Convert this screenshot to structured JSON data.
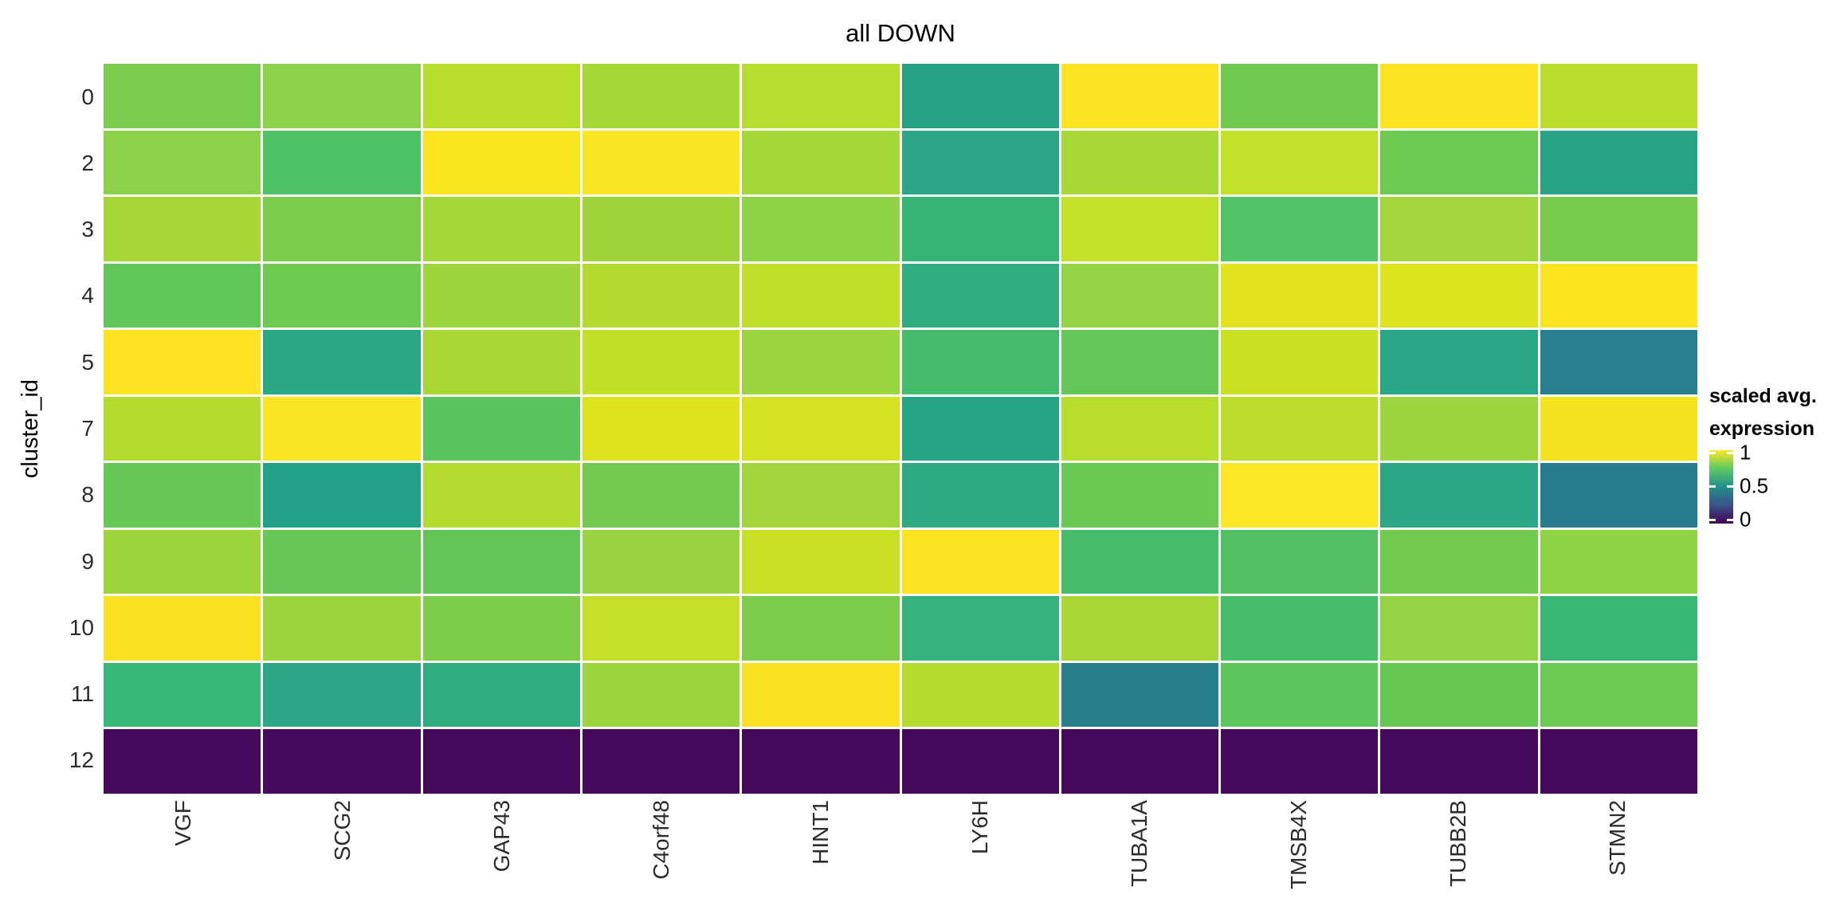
{
  "figure": {
    "title": "all DOWN",
    "y_axis_title": "cluster_id",
    "background": "#ffffff"
  },
  "legend": {
    "title_line1": "scaled avg.",
    "title_line2": "expression",
    "tick_labels": [
      "1",
      "0.5",
      "0"
    ],
    "gradient_stops": [
      "#FDE725",
      "#5EC962",
      "#21918C",
      "#3B528B",
      "#440154"
    ]
  },
  "chart_data": {
    "type": "heatmap",
    "title": "all DOWN",
    "xlabel": "",
    "ylabel": "cluster_id",
    "legend_title": "scaled avg. expression",
    "colorscale": "viridis",
    "value_range": [
      0,
      1
    ],
    "x_categories": [
      "VGF",
      "SCG2",
      "GAP43",
      "C4orf48",
      "HINT1",
      "LY6H",
      "TUBA1A",
      "TMSB4X",
      "TUBB2B",
      "STMN2"
    ],
    "y_categories": [
      "0",
      "2",
      "3",
      "4",
      "5",
      "7",
      "8",
      "9",
      "10",
      "11",
      "12"
    ],
    "values": [
      [
        0.75,
        0.77,
        0.84,
        0.81,
        0.84,
        0.56,
        0.98,
        0.73,
        0.98,
        0.84
      ],
      [
        0.77,
        0.68,
        0.99,
        0.99,
        0.81,
        0.57,
        0.82,
        0.86,
        0.72,
        0.57
      ],
      [
        0.81,
        0.75,
        0.81,
        0.8,
        0.78,
        0.61,
        0.87,
        0.68,
        0.8,
        0.74
      ],
      [
        0.7,
        0.72,
        0.79,
        0.83,
        0.86,
        0.59,
        0.78,
        0.92,
        0.91,
        0.98
      ],
      [
        0.98,
        0.58,
        0.82,
        0.86,
        0.79,
        0.65,
        0.7,
        0.87,
        0.58,
        0.44
      ],
      [
        0.84,
        0.98,
        0.69,
        0.91,
        0.9,
        0.57,
        0.84,
        0.85,
        0.79,
        0.96
      ],
      [
        0.71,
        0.56,
        0.84,
        0.73,
        0.8,
        0.58,
        0.72,
        1.0,
        0.58,
        0.43
      ],
      [
        0.79,
        0.71,
        0.7,
        0.79,
        0.87,
        0.98,
        0.66,
        0.68,
        0.73,
        0.78
      ],
      [
        0.97,
        0.79,
        0.75,
        0.87,
        0.75,
        0.61,
        0.82,
        0.66,
        0.78,
        0.62
      ],
      [
        0.62,
        0.58,
        0.59,
        0.79,
        0.97,
        0.84,
        0.45,
        0.69,
        0.71,
        0.72
      ],
      [
        0.0,
        0.0,
        0.0,
        0.0,
        0.0,
        0.0,
        0.0,
        0.0,
        0.0,
        0.0
      ]
    ],
    "colors": [
      [
        "#7CCD4F",
        "#8CD14A",
        "#B9DD2C",
        "#A5D739",
        "#B5DC2E",
        "#26A186",
        "#FCE422",
        "#70CA51",
        "#FCE320",
        "#B8DD2C"
      ],
      [
        "#8BD14A",
        "#50C266",
        "#FBE51F",
        "#F9E621",
        "#A5D737",
        "#2BA487",
        "#A8D836",
        "#C2DF29",
        "#6CC951",
        "#27A486"
      ],
      [
        "#A6D737",
        "#7CCD4D",
        "#A4D638",
        "#A0D53A",
        "#8ED246",
        "#35B377",
        "#C3E028",
        "#52C266",
        "#A2D63A",
        "#77CC4E"
      ],
      [
        "#60C657",
        "#6EC950",
        "#9ED43C",
        "#B2DA30",
        "#C0DF2A",
        "#2FAC80",
        "#94D344",
        "#E0E31E",
        "#DDE21F",
        "#FCE41F"
      ],
      [
        "#FDE321",
        "#2AA885",
        "#AAD733",
        "#C2DF27",
        "#9AD53F",
        "#44BB6D",
        "#64C757",
        "#C8E122",
        "#2AA786",
        "#2A7F8E"
      ],
      [
        "#B4DB2E",
        "#FBE422",
        "#5AC45F",
        "#DFE31D",
        "#D5E220",
        "#26A486",
        "#B9DD2C",
        "#BCDD2B",
        "#9ED43D",
        "#F4E41E"
      ],
      [
        "#67C855",
        "#21A187",
        "#B4DB2F",
        "#72CB4F",
        "#A2D53A",
        "#2EAA82",
        "#6BC953",
        "#FDE724",
        "#2BA785",
        "#297B8E"
      ],
      [
        "#9CD43C",
        "#66C755",
        "#62C657",
        "#98D441",
        "#C8E025",
        "#FCE320",
        "#47BD6B",
        "#52C163",
        "#72CA4F",
        "#8ED246"
      ],
      [
        "#FAE122",
        "#9BD43C",
        "#7ECD4A",
        "#C3DF28",
        "#7BCC4B",
        "#35B27B",
        "#AAD736",
        "#46BD6B",
        "#94D343",
        "#39B574"
      ],
      [
        "#36B878",
        "#2FA689",
        "#2FAB80",
        "#9ED43C",
        "#FAE121",
        "#B6DB2F",
        "#2A7E8C",
        "#5EC45C",
        "#68C854",
        "#6CC951"
      ],
      [
        "#460A5C",
        "#460A5C",
        "#460A5C",
        "#460A5C",
        "#460A5C",
        "#460A5C",
        "#460A5C",
        "#460A5C",
        "#460A5C",
        "#460A5C"
      ]
    ]
  }
}
